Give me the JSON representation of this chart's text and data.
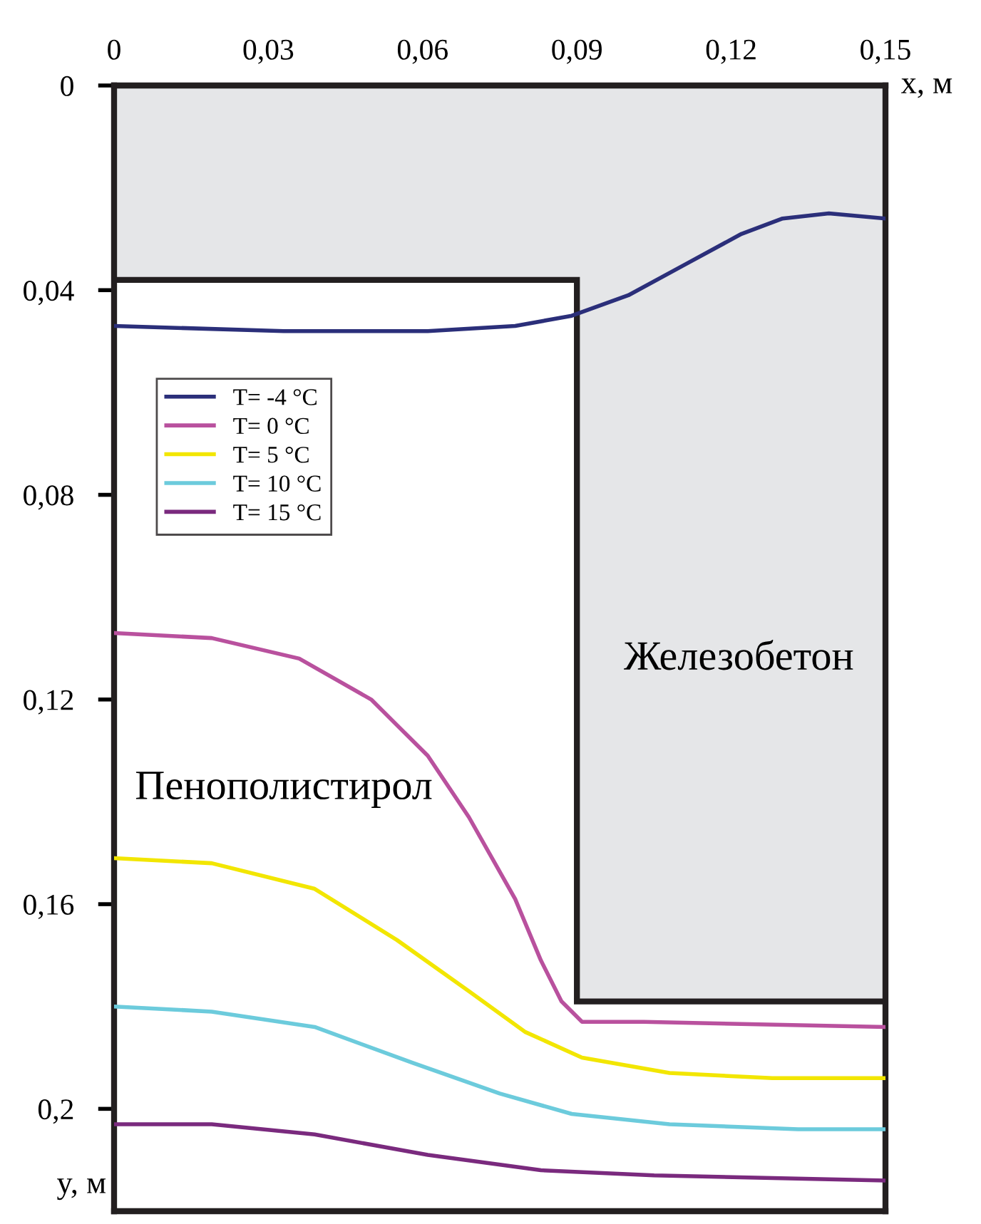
{
  "chart_data": {
    "type": "line",
    "xlabel": "x, м",
    "ylabel": "y, м",
    "xlim": [
      0,
      0.15
    ],
    "ylim": [
      0.22,
      0
    ],
    "xticks": [
      {
        "value": 0,
        "label": "0"
      },
      {
        "value": 0.03,
        "label": "0,03"
      },
      {
        "value": 0.06,
        "label": "0,06"
      },
      {
        "value": 0.09,
        "label": "0,09"
      },
      {
        "value": 0.12,
        "label": "0,12"
      },
      {
        "value": 0.15,
        "label": "0,15"
      }
    ],
    "yticks": [
      {
        "value": 0,
        "label": "0"
      },
      {
        "value": 0.04,
        "label": "0,04"
      },
      {
        "value": 0.08,
        "label": "0,08"
      },
      {
        "value": 0.12,
        "label": "0,12"
      },
      {
        "value": 0.16,
        "label": "0,16"
      },
      {
        "value": 0.2,
        "label": "0,2"
      }
    ],
    "grid": false,
    "legend": "top left",
    "series": [
      {
        "type": "area",
        "color": "#e5e6e8",
        "x": [
          0,
          0.09,
          0.09,
          0.15
        ],
        "values": [
          0.038,
          0.038,
          0.179,
          0.179
        ]
      },
      {
        "name": "T= -4 °C",
        "color": "#2b2f7a",
        "x": [
          0,
          0.033,
          0.061,
          0.078,
          0.089,
          0.1,
          0.111,
          0.122,
          0.13,
          0.139,
          0.15
        ],
        "values": [
          0.047,
          0.048,
          0.048,
          0.047,
          0.045,
          0.041,
          0.035,
          0.029,
          0.026,
          0.025,
          0.026
        ]
      },
      {
        "name": "T= 0 °C",
        "color": "#b9519e",
        "x": [
          0,
          0.019,
          0.036,
          0.05,
          0.061,
          0.069,
          0.078,
          0.083,
          0.087,
          0.091,
          0.103,
          0.15
        ],
        "values": [
          0.107,
          0.108,
          0.112,
          0.12,
          0.131,
          0.143,
          0.159,
          0.171,
          0.179,
          0.183,
          0.183,
          0.184
        ]
      },
      {
        "name": "T= 5 °C",
        "color": "#f2e600",
        "x": [
          0,
          0.019,
          0.039,
          0.055,
          0.069,
          0.08,
          0.091,
          0.108,
          0.128,
          0.15
        ],
        "values": [
          0.151,
          0.152,
          0.157,
          0.167,
          0.177,
          0.185,
          0.19,
          0.193,
          0.194,
          0.194
        ]
      },
      {
        "name": "T= 10 °C",
        "color": "#6ccbdc",
        "x": [
          0,
          0.019,
          0.039,
          0.058,
          0.075,
          0.089,
          0.108,
          0.133,
          0.15
        ],
        "values": [
          0.18,
          0.181,
          0.184,
          0.191,
          0.197,
          0.201,
          0.203,
          0.204,
          0.204
        ]
      },
      {
        "name": "T= 15 °C",
        "color": "#7a2a7e",
        "x": [
          0,
          0.019,
          0.039,
          0.061,
          0.083,
          0.105,
          0.15
        ],
        "values": [
          0.203,
          0.203,
          0.205,
          0.209,
          0.212,
          0.213,
          0.214
        ]
      }
    ],
    "annotations": [
      "Железобетон",
      "Пенополистирол"
    ]
  }
}
